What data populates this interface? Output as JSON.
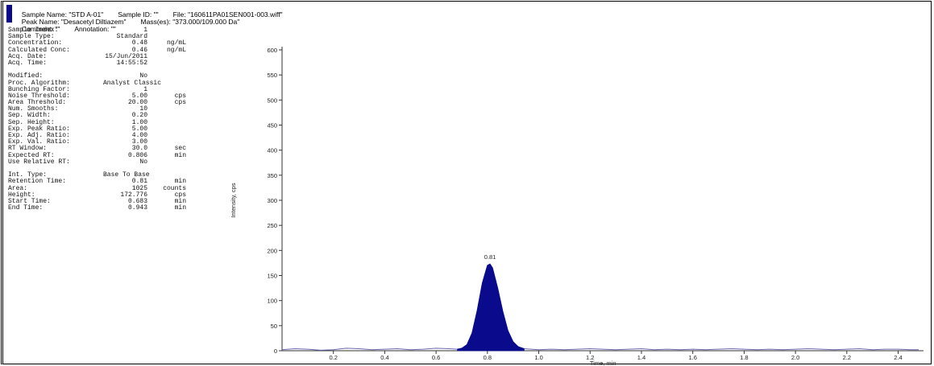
{
  "header": {
    "sample_name": "Sample Name: \"STD A-01\"",
    "sample_id": "Sample ID: \"\"",
    "file": "File: \"160611PA01SEN001-003.wiff\"",
    "peak_name": "Peak Name: \"Desacetyl Diltiazem\"",
    "masses": "Mass(es): \"373.000/109.000 Da\"",
    "comment": "Comment: \"\"",
    "annotation": "Annotation: \"\""
  },
  "params_group1": [
    {
      "k": "Sample Index:",
      "v": "1",
      "u": ""
    },
    {
      "k": "Sample Type:",
      "v": "Standard",
      "u": ""
    },
    {
      "k": "Concentration:",
      "v": "0.48",
      "u": "ng/mL"
    },
    {
      "k": "Calculated Conc:",
      "v": "0.46",
      "u": "ng/mL"
    },
    {
      "k": "Acq. Date:",
      "v": "15/Jun/2011",
      "u": ""
    },
    {
      "k": "Acq. Time:",
      "v": "14:55:52",
      "u": ""
    }
  ],
  "params_group2": [
    {
      "k": "Modified:",
      "v": "No",
      "u": ""
    },
    {
      "k": "Proc. Algorithm:",
      "v": "Analyst Classic",
      "u": ""
    },
    {
      "k": "Bunching Factor:",
      "v": "1",
      "u": ""
    },
    {
      "k": "Noise Threshold:",
      "v": "5.00",
      "u": "cps"
    },
    {
      "k": "Area Threshold:",
      "v": "20.00",
      "u": "cps"
    },
    {
      "k": "Num. Smooths:",
      "v": "10",
      "u": ""
    },
    {
      "k": "Sep. Width:",
      "v": "0.20",
      "u": ""
    },
    {
      "k": "Sep. Height:",
      "v": "1.00",
      "u": ""
    },
    {
      "k": "Exp. Peak Ratio:",
      "v": "5.00",
      "u": ""
    },
    {
      "k": "Exp. Adj. Ratio:",
      "v": "4.00",
      "u": ""
    },
    {
      "k": "Exp. Val. Ratio:",
      "v": "3.00",
      "u": ""
    },
    {
      "k": "RT Window:",
      "v": "30.0",
      "u": "sec"
    },
    {
      "k": "Expected RT:",
      "v": "0.806",
      "u": "min"
    },
    {
      "k": "Use Relative RT:",
      "v": "No",
      "u": ""
    }
  ],
  "params_group3": [
    {
      "k": "Int. Type:",
      "v": "Base To Base",
      "u": ""
    },
    {
      "k": "Retention Time:",
      "v": "0.81",
      "u": "min"
    },
    {
      "k": "Area:",
      "v": "1025",
      "u": "counts"
    },
    {
      "k": "Height:",
      "v": "172.776",
      "u": "cps"
    },
    {
      "k": "Start Time:",
      "v": "0.683",
      "u": "min"
    },
    {
      "k": "End Time:",
      "v": "0.943",
      "u": "min"
    }
  ],
  "chart_data": {
    "type": "area",
    "xlabel": "Time, min",
    "ylabel": "Intensity, cps",
    "xlim": [
      0.0,
      2.48
    ],
    "ylim": [
      0,
      600
    ],
    "xticks": [
      "0.2",
      "0.4",
      "0.6",
      "0.8",
      "1.0",
      "1.2",
      "1.4",
      "1.6",
      "1.8",
      "2.0",
      "2.2",
      "2.4"
    ],
    "yticks": [
      "0",
      "50",
      "100",
      "150",
      "200",
      "250",
      "300",
      "350",
      "400",
      "450",
      "500",
      "550",
      "600"
    ],
    "peak_label": "0.81",
    "fill_color": "#0a0a8c",
    "baseline_color": "#6a6ab0",
    "series": [
      {
        "x": [
          0.0,
          0.05,
          0.1,
          0.15,
          0.2,
          0.25,
          0.3,
          0.35,
          0.4,
          0.45,
          0.5,
          0.55,
          0.6,
          0.65,
          0.683,
          0.7,
          0.72,
          0.74,
          0.76,
          0.78,
          0.8,
          0.81,
          0.82,
          0.84,
          0.86,
          0.88,
          0.9,
          0.92,
          0.943,
          0.97,
          1.0,
          1.05,
          1.1,
          1.15,
          1.2,
          1.25,
          1.3,
          1.35,
          1.4,
          1.45,
          1.5,
          1.55,
          1.6,
          1.65,
          1.7,
          1.75,
          1.8,
          1.85,
          1.9,
          1.95,
          2.0,
          2.05,
          2.1,
          2.15,
          2.2,
          2.25,
          2.3,
          2.35,
          2.4,
          2.45,
          2.48
        ],
        "y": [
          2,
          4,
          3,
          1,
          2,
          5,
          4,
          2,
          3,
          4,
          2,
          3,
          5,
          4,
          3,
          5,
          12,
          35,
          80,
          135,
          170,
          173,
          165,
          125,
          78,
          40,
          18,
          8,
          4,
          3,
          2,
          3,
          2,
          3,
          4,
          3,
          2,
          3,
          4,
          2,
          3,
          2,
          3,
          2,
          3,
          4,
          3,
          2,
          3,
          2,
          3,
          4,
          3,
          2,
          3,
          4,
          2,
          3,
          3,
          2,
          2
        ]
      }
    ]
  }
}
